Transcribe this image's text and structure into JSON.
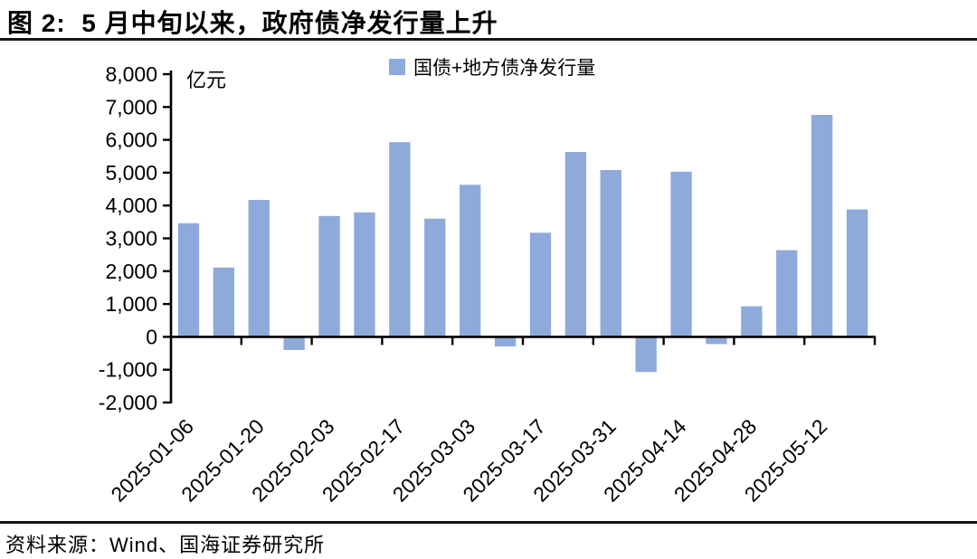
{
  "header": {
    "title": "图 2:  5 月中旬以来，政府债净发行量上升"
  },
  "footer": {
    "source": "资料来源：Wind、国海证券研究所"
  },
  "chart_data": {
    "type": "bar",
    "title": "图 2: 5 月中旬以来，政府债净发行量上升",
    "unit_label": "亿元",
    "legend": [
      "国债+地方债净发行量"
    ],
    "bar_color": "#8EAADB",
    "axis_color": "#000000",
    "categories": [
      "2025-01-06",
      "2025-01-13",
      "2025-01-20",
      "2025-01-27",
      "2025-02-03",
      "2025-02-10",
      "2025-02-17",
      "2025-02-24",
      "2025-03-03",
      "2025-03-10",
      "2025-03-17",
      "2025-03-24",
      "2025-03-31",
      "2025-04-07",
      "2025-04-14",
      "2025-04-21",
      "2025-04-28",
      "2025-05-05",
      "2025-05-12",
      "2025-05-19"
    ],
    "values": [
      3460,
      2110,
      4170,
      -400,
      3680,
      3790,
      5930,
      3600,
      4630,
      -290,
      3170,
      5630,
      5080,
      -1070,
      5030,
      -220,
      930,
      2640,
      6760,
      3880
    ],
    "x_tick_labels": [
      "2025-01-06",
      "2025-01-20",
      "2025-02-03",
      "2025-02-17",
      "2025-03-03",
      "2025-03-17",
      "2025-03-31",
      "2025-04-14",
      "2025-04-28",
      "2025-05-12"
    ],
    "ylim": [
      -2000,
      8000
    ],
    "y_tick_step": 1000,
    "y_ticks": [
      8000,
      7000,
      6000,
      5000,
      4000,
      3000,
      2000,
      1000,
      0,
      -1000,
      -2000
    ],
    "y_tick_labels": [
      "8,000",
      "7,000",
      "6,000",
      "5,000",
      "4,000",
      "3,000",
      "2,000",
      "1,000",
      "0",
      "-1,000",
      "-2,000"
    ],
    "grid": "off",
    "legend_position": "top-center"
  }
}
